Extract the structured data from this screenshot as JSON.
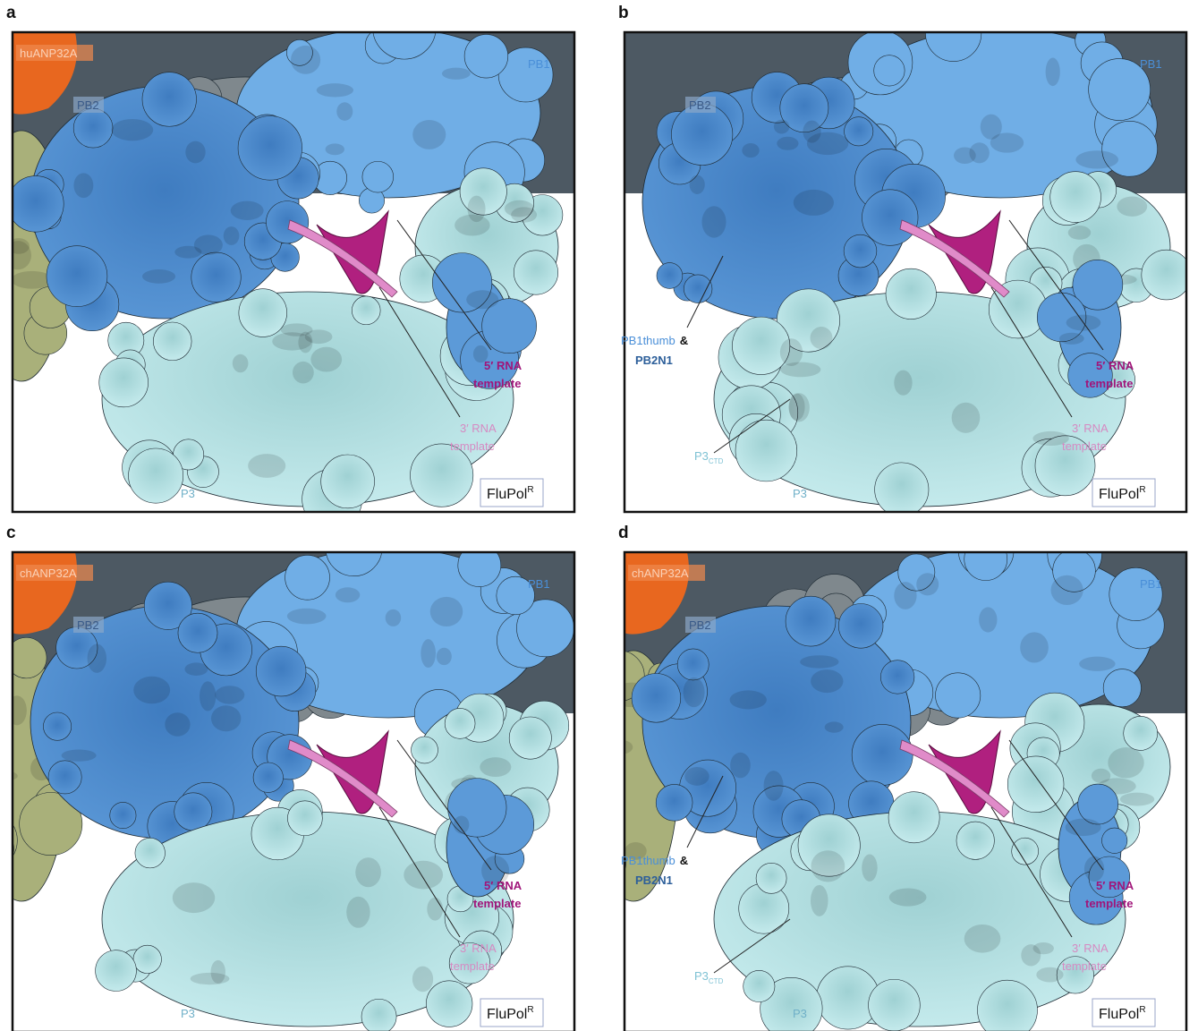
{
  "panels": [
    {
      "letter": "a",
      "anp32": "huANP32A",
      "pb2": "PB2",
      "pb1": "PB1",
      "rna5": [
        "5′ RNA",
        "template"
      ],
      "rna3": [
        "3′ RNA",
        "template"
      ],
      "p3": "P3",
      "flupol": {
        "main": "FluPol",
        "sup": "R"
      }
    },
    {
      "letter": "b",
      "pb2": "PB2",
      "pb1": "PB1",
      "thumb": {
        "line1": "PB1thumb",
        "amp": "&",
        "line2": "PB2N1"
      },
      "p3ctd": {
        "main": "P3",
        "sub": "CTD"
      },
      "rna5": [
        "5′ RNA",
        "template"
      ],
      "rna3": [
        "3′ RNA",
        "template"
      ],
      "p3": "P3",
      "flupol": {
        "main": "FluPol",
        "sup": "R"
      }
    },
    {
      "letter": "c",
      "anp32": "chANP32A",
      "pb2": "PB2",
      "pb1": "PB1",
      "rna5": [
        "5′ RNA",
        "template"
      ],
      "rna3": [
        "3′ RNA",
        "template"
      ],
      "p3": "P3",
      "flupol": {
        "main": "FluPol",
        "sup": "R"
      }
    },
    {
      "letter": "d",
      "anp32": "chANP32A",
      "pb2": "PB2",
      "pb1": "PB1",
      "thumb": {
        "line1": "PB1thumb",
        "amp": "&",
        "line2": "PB2N1"
      },
      "p3ctd": {
        "main": "P3",
        "sub": "CTD"
      },
      "rna5": [
        "5′ RNA",
        "template"
      ],
      "rna3": [
        "3′ RNA",
        "template"
      ],
      "p3": "P3",
      "flupol": {
        "main": "FluPol",
        "sup": "R"
      }
    }
  ]
}
